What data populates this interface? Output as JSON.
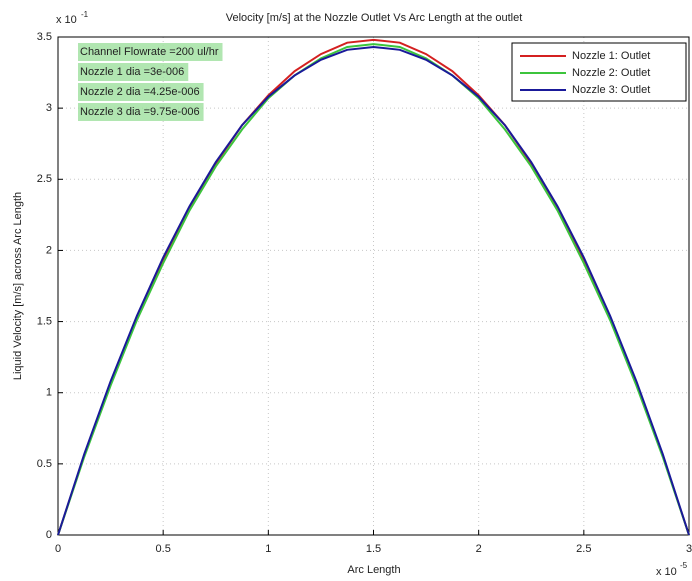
{
  "chart_data": {
    "type": "line",
    "title": "Velocity [m/s] at the Nozzle Outlet Vs Arc Length at the outlet",
    "x_label": "Arc Length",
    "y_label": "Liquid Velocity [m/s] across Arc Length",
    "x_multiplier": {
      "base": "x 10",
      "exponent": "-5"
    },
    "y_multiplier": {
      "base": "x 10",
      "exponent": "-1"
    },
    "annotations": [
      "Channel Flowrate =200 ul/hr",
      "Nozzle 1 dia =3e-006",
      "Nozzle 2 dia =4.25e-006",
      "Nozzle 3 dia =9.75e-006"
    ],
    "x": [
      0,
      0.125,
      0.25,
      0.375,
      0.5,
      0.625,
      0.75,
      0.875,
      1,
      1.125,
      1.25,
      1.375,
      1.5,
      1.625,
      1.75,
      1.875,
      2,
      2.125,
      2.25,
      2.375,
      2.5,
      2.625,
      2.75,
      2.875,
      3
    ],
    "series": [
      {
        "name": "Nozzle 1: Outlet",
        "color": "#d42020",
        "values": [
          0,
          0.56,
          1.06,
          1.52,
          1.93,
          2.3,
          2.61,
          2.88,
          3.09,
          3.26,
          3.38,
          3.46,
          3.48,
          3.46,
          3.38,
          3.26,
          3.09,
          2.88,
          2.61,
          2.3,
          1.93,
          1.52,
          1.06,
          0.56,
          0
        ]
      },
      {
        "name": "Nozzle 2: Outlet",
        "color": "#3cc43c",
        "values": [
          0,
          0.55,
          1.05,
          1.51,
          1.91,
          2.28,
          2.59,
          2.85,
          3.07,
          3.23,
          3.35,
          3.43,
          3.45,
          3.43,
          3.35,
          3.23,
          3.07,
          2.85,
          2.59,
          2.28,
          1.91,
          1.51,
          1.05,
          0.55,
          0
        ]
      },
      {
        "name": "Nozzle 3: Outlet",
        "color": "#1a1a9a",
        "values": [
          0,
          0.57,
          1.08,
          1.54,
          1.95,
          2.31,
          2.62,
          2.88,
          3.08,
          3.23,
          3.34,
          3.41,
          3.43,
          3.41,
          3.34,
          3.23,
          3.08,
          2.88,
          2.62,
          2.31,
          1.95,
          1.54,
          1.08,
          0.57,
          0
        ]
      }
    ],
    "xlim": [
      0,
      3
    ],
    "ylim": [
      0,
      3.5
    ],
    "xticks": [
      0,
      0.5,
      1,
      1.5,
      2,
      2.5,
      3
    ],
    "yticks": [
      0,
      0.5,
      1,
      1.5,
      2,
      2.5,
      3,
      3.5
    ],
    "grid": true
  }
}
